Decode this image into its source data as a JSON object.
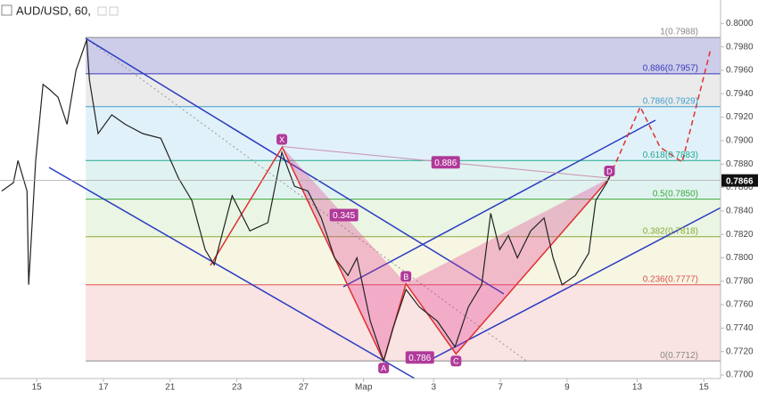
{
  "chart_data": {
    "type": "line",
    "title": "AUD/USD, 60,",
    "x": [
      -1.05,
      -0.7,
      -0.56,
      -0.29,
      -0.24,
      -0.03,
      0.19,
      0.37,
      0.64,
      0.91,
      1.18,
      1.5,
      1.58,
      1.84,
      2.25,
      2.65,
      3.18,
      3.72,
      4.25,
      4.65,
      5.05,
      5.32,
      5.86,
      6.39,
      6.93,
      7.35,
      7.73,
      8.13,
      8.53,
      8.93,
      9.33,
      9.6,
      10.0,
      10.4,
      10.67,
      11.07,
      11.47,
      12.01,
      12.54,
      12.94,
      13.34,
      13.61,
      13.88,
      14.14,
      14.41,
      14.81,
      15.21,
      15.48,
      15.75,
      16.15,
      16.55,
      16.76,
      17.09,
      17.22
    ],
    "series": [
      {
        "name": "AUD/USD",
        "color": "#222222",
        "values": [
          0.7857,
          0.7864,
          0.7883,
          0.7857,
          0.7777,
          0.7883,
          0.7948,
          0.7944,
          0.7937,
          0.7914,
          0.796,
          0.7986,
          0.7952,
          0.7906,
          0.7922,
          0.7914,
          0.7906,
          0.7902,
          0.7868,
          0.7849,
          0.7807,
          0.7794,
          0.7853,
          0.7823,
          0.783,
          0.789,
          0.7861,
          0.7857,
          0.7834,
          0.78,
          0.7785,
          0.78,
          0.7746,
          0.7712,
          0.7739,
          0.7773,
          0.7758,
          0.7746,
          0.7724,
          0.7758,
          0.7777,
          0.7838,
          0.7807,
          0.7819,
          0.78,
          0.7823,
          0.7834,
          0.78,
          0.7777,
          0.7785,
          0.7804,
          0.7849,
          0.7864,
          0.7872
        ]
      }
    ],
    "xlim": [
      -1.1,
      20.5
    ],
    "xticks": [
      {
        "value": 0,
        "label": "15"
      },
      {
        "value": 2,
        "label": "17"
      },
      {
        "value": 4,
        "label": "21"
      },
      {
        "value": 6,
        "label": "23"
      },
      {
        "value": 8,
        "label": "27"
      },
      {
        "value": 9.8,
        "label": "Мар"
      },
      {
        "value": 11.9,
        "label": "3"
      },
      {
        "value": 13.9,
        "label": "7"
      },
      {
        "value": 15.9,
        "label": "9"
      },
      {
        "value": 18,
        "label": "13"
      },
      {
        "value": 20,
        "label": "15"
      }
    ],
    "ylim": [
      0.7697,
      0.802
    ],
    "yticks": [
      {
        "value": 0.77,
        "label": "0.7700"
      },
      {
        "value": 0.772,
        "label": "0.7720"
      },
      {
        "value": 0.774,
        "label": "0.7740"
      },
      {
        "value": 0.776,
        "label": "0.7760"
      },
      {
        "value": 0.778,
        "label": "0.7780"
      },
      {
        "value": 0.78,
        "label": "0.7800"
      },
      {
        "value": 0.782,
        "label": "0.7820"
      },
      {
        "value": 0.784,
        "label": "0.7840"
      },
      {
        "value": 0.786,
        "label": "0.7860"
      },
      {
        "value": 0.788,
        "label": "0.7880"
      },
      {
        "value": 0.79,
        "label": "0.7900"
      },
      {
        "value": 0.792,
        "label": "0.7920"
      },
      {
        "value": 0.794,
        "label": "0.7940"
      },
      {
        "value": 0.796,
        "label": "0.7960"
      },
      {
        "value": 0.798,
        "label": "0.7980"
      },
      {
        "value": 0.8,
        "label": "0.8000"
      }
    ],
    "last_price": {
      "value": 0.7866,
      "label": "0.7866"
    },
    "fib_start": 1.47,
    "fib_levels": [
      {
        "label": "1(0.7988)",
        "value": 0.7988,
        "color": "#888888",
        "fill": "#c4c4e6"
      },
      {
        "label": "0.886(0.7957)",
        "value": 0.7957,
        "color": "#3a3ab8",
        "fill": "#e8e8e8"
      },
      {
        "label": "0.786(0.7929)",
        "value": 0.7929,
        "color": "#3aa0d0",
        "fill": "#dceef8"
      },
      {
        "label": "0.618(0.7883)",
        "value": 0.7883,
        "color": "#20a890",
        "fill": "#dcf1ee"
      },
      {
        "label": "0.5(0.7850)",
        "value": 0.785,
        "color": "#3aa83a",
        "fill": "#e6f4de"
      },
      {
        "label": "0.382(0.7818)",
        "value": 0.7818,
        "color": "#8aa83a",
        "fill": "#f4f4de"
      },
      {
        "label": "0.236(0.7777)",
        "value": 0.7777,
        "color": "#e05050",
        "fill": "#f9dede"
      },
      {
        "label": "0(0.7712)",
        "value": 0.7712,
        "color": "#888888"
      }
    ],
    "pattern": [
      {
        "label": "X",
        "x": 7.35,
        "y": 0.7895
      },
      {
        "label": "A",
        "x": 10.4,
        "y": 0.7712
      },
      {
        "label": "B",
        "x": 11.07,
        "y": 0.7778
      },
      {
        "label": "C",
        "x": 12.57,
        "y": 0.7718
      },
      {
        "label": "D",
        "x": 17.17,
        "y": 0.7868
      }
    ],
    "ratios": [
      0.345,
      0.786,
      0.886
    ]
  }
}
